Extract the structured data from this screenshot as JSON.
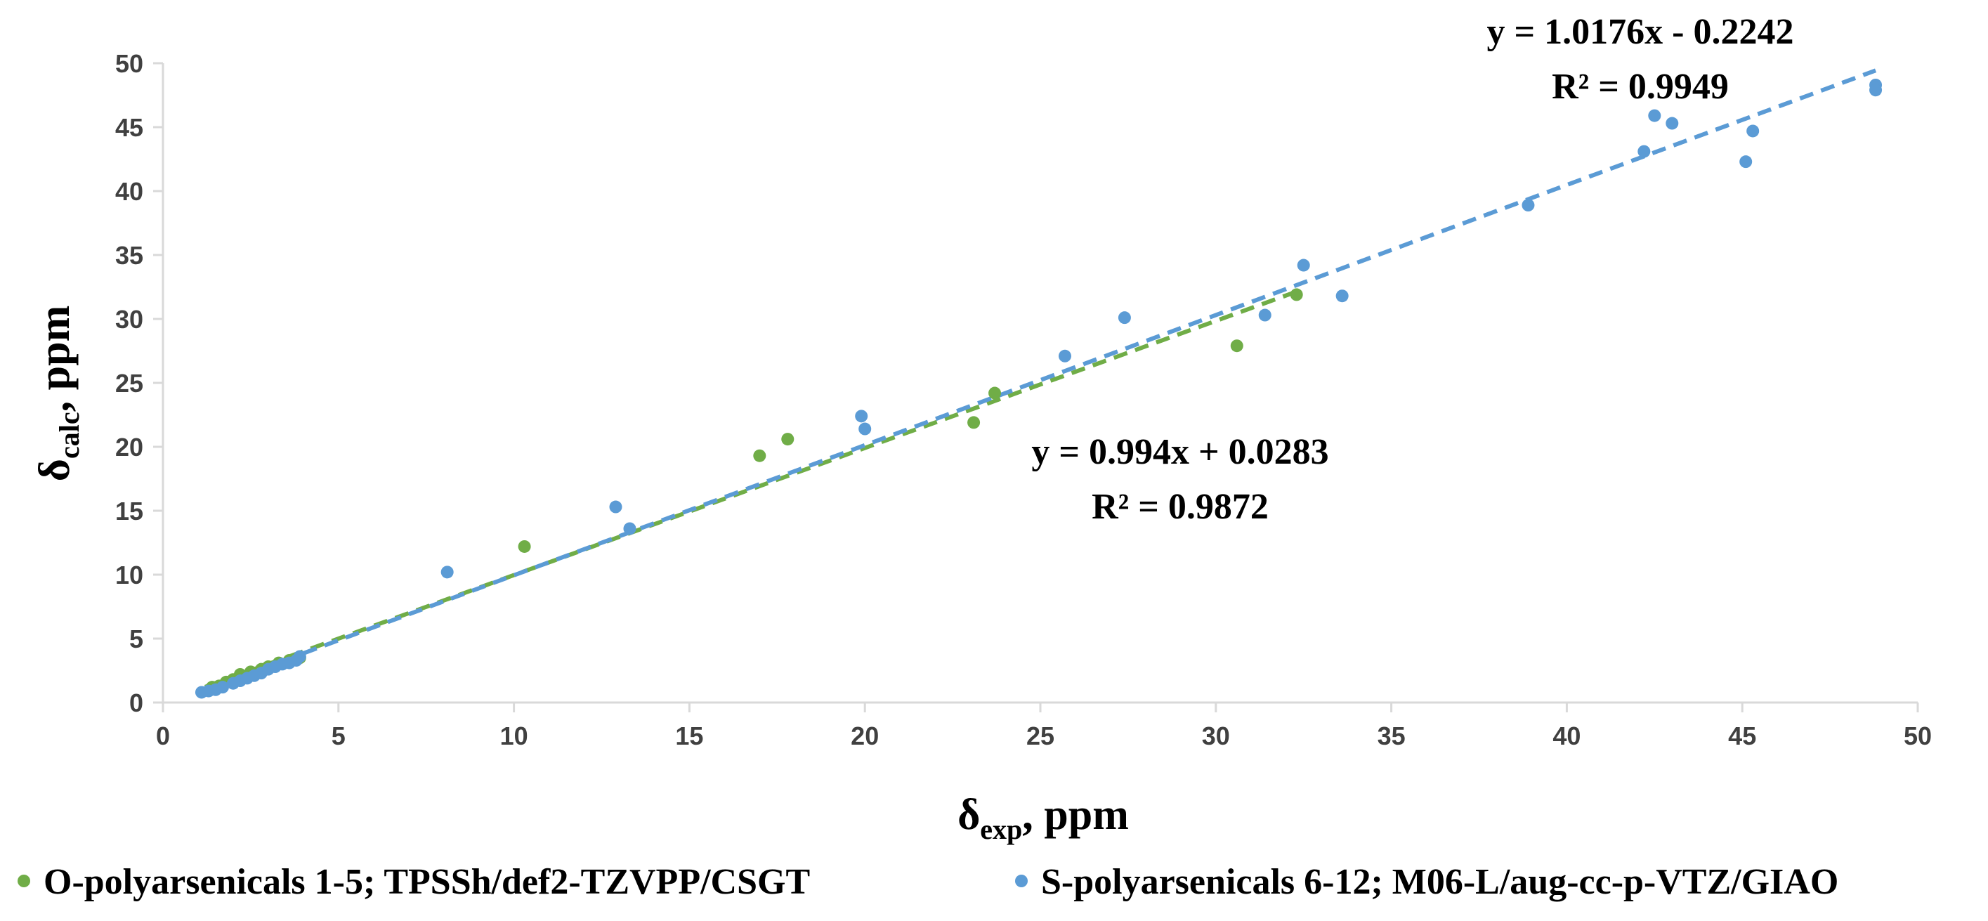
{
  "chart_data": {
    "type": "scatter",
    "xlabel": {
      "main": "δ",
      "sub": "exp",
      "rest": ", ppm"
    },
    "ylabel": {
      "main": "δ",
      "sub": "calc",
      "rest": ", ppm"
    },
    "xlim": [
      0,
      50
    ],
    "ylim": [
      0,
      50
    ],
    "x_ticks": [
      0,
      5,
      10,
      15,
      20,
      25,
      30,
      35,
      40,
      45,
      50
    ],
    "y_ticks": [
      0,
      5,
      10,
      15,
      20,
      25,
      30,
      35,
      40,
      45,
      50
    ],
    "series": [
      {
        "name": "O-polyarsenicals 1-5; TPSSh/def2-TZVPP/CSGT",
        "color": "#70ad47",
        "points": [
          [
            1.4,
            1.2
          ],
          [
            1.6,
            1.3
          ],
          [
            1.8,
            1.6
          ],
          [
            2.0,
            1.8
          ],
          [
            2.2,
            2.2
          ],
          [
            2.5,
            2.4
          ],
          [
            2.8,
            2.6
          ],
          [
            3.0,
            2.8
          ],
          [
            3.3,
            3.1
          ],
          [
            3.6,
            3.3
          ],
          [
            3.9,
            3.5
          ],
          [
            10.3,
            12.2
          ],
          [
            17.0,
            19.3
          ],
          [
            17.8,
            20.6
          ],
          [
            23.1,
            21.9
          ],
          [
            23.7,
            24.2
          ],
          [
            30.6,
            27.9
          ],
          [
            32.3,
            31.9
          ]
        ],
        "trendline": {
          "slope": 0.994,
          "intercept": 0.0283,
          "x_range": [
            1.2,
            32.3
          ]
        },
        "equation": "y = 0.994x + 0.0283",
        "r2": "R² = 0.9872"
      },
      {
        "name": "S-polyarsenicals 6-12; M06-L/aug-cc-p-VTZ/GIAO",
        "color": "#5b9bd5",
        "points": [
          [
            1.1,
            0.8
          ],
          [
            1.3,
            0.9
          ],
          [
            1.5,
            1.0
          ],
          [
            1.7,
            1.2
          ],
          [
            2.0,
            1.5
          ],
          [
            2.2,
            1.7
          ],
          [
            2.4,
            1.9
          ],
          [
            2.6,
            2.1
          ],
          [
            2.8,
            2.3
          ],
          [
            3.0,
            2.6
          ],
          [
            3.2,
            2.8
          ],
          [
            3.4,
            3.0
          ],
          [
            3.6,
            3.1
          ],
          [
            3.8,
            3.3
          ],
          [
            3.9,
            3.6
          ],
          [
            8.1,
            10.2
          ],
          [
            12.9,
            15.3
          ],
          [
            13.3,
            13.6
          ],
          [
            19.9,
            22.4
          ],
          [
            20.0,
            21.4
          ],
          [
            25.7,
            27.1
          ],
          [
            27.4,
            30.1
          ],
          [
            31.4,
            30.3
          ],
          [
            32.5,
            34.2
          ],
          [
            33.6,
            31.8
          ],
          [
            38.9,
            38.9
          ],
          [
            42.2,
            43.1
          ],
          [
            42.5,
            45.9
          ],
          [
            43.0,
            45.3
          ],
          [
            45.1,
            42.3
          ],
          [
            45.3,
            44.7
          ],
          [
            48.8,
            48.3
          ],
          [
            48.8,
            47.9
          ]
        ],
        "trendline": {
          "slope": 1.0176,
          "intercept": -0.2242,
          "x_range": [
            1.0,
            48.8
          ]
        },
        "equation": "y = 1.0176x - 0.2242",
        "r2": "R² = 0.9949"
      }
    ]
  }
}
